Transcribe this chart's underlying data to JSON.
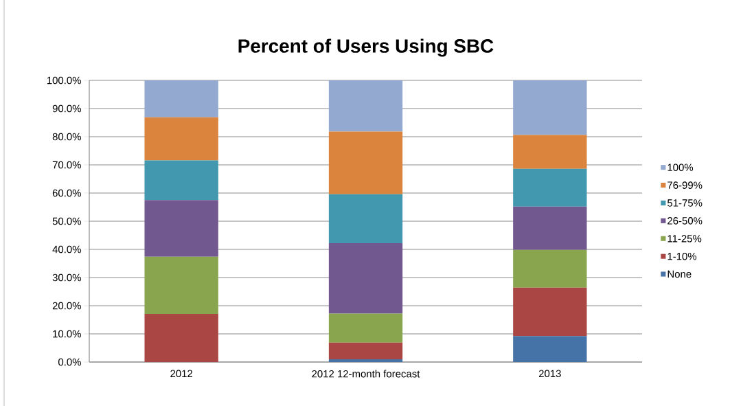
{
  "chart_data": {
    "type": "bar",
    "title": "Percent of Users Using SBC",
    "stacked": true,
    "categories": [
      "2012",
      "2012 12-month forecast",
      "2013"
    ],
    "series": [
      {
        "name": "None",
        "color": "#4572a7",
        "values": [
          0,
          1.0,
          9.2
        ]
      },
      {
        "name": "1-10%",
        "color": "#aa4643",
        "values": [
          17.1,
          5.9,
          17.2
        ]
      },
      {
        "name": "11-25%",
        "color": "#89a54e",
        "values": [
          20.3,
          10.3,
          13.4
        ]
      },
      {
        "name": "26-50%",
        "color": "#71588f",
        "values": [
          20.1,
          25.0,
          15.4
        ]
      },
      {
        "name": "51-75%",
        "color": "#4198af",
        "values": [
          14.1,
          17.4,
          13.4
        ]
      },
      {
        "name": "76-99%",
        "color": "#db843d",
        "values": [
          15.3,
          22.2,
          12.0
        ]
      },
      {
        "name": "100%",
        "color": "#93a9cf",
        "values": [
          13.1,
          18.2,
          19.4
        ]
      }
    ],
    "ylim": [
      0,
      100
    ],
    "yticks": [
      {
        "value": 0,
        "label": "0.0%"
      },
      {
        "value": 10,
        "label": "10.0%"
      },
      {
        "value": 20,
        "label": "20.0%"
      },
      {
        "value": 30,
        "label": "30.0%"
      },
      {
        "value": 40,
        "label": "40.0%"
      },
      {
        "value": 50,
        "label": "50.0%"
      },
      {
        "value": 60,
        "label": "60.0%"
      },
      {
        "value": 70,
        "label": "70.0%"
      },
      {
        "value": 80,
        "label": "80.0%"
      },
      {
        "value": 90,
        "label": "90.0%"
      },
      {
        "value": 100,
        "label": "100.0%"
      }
    ],
    "grid": "y",
    "legend": "right"
  }
}
